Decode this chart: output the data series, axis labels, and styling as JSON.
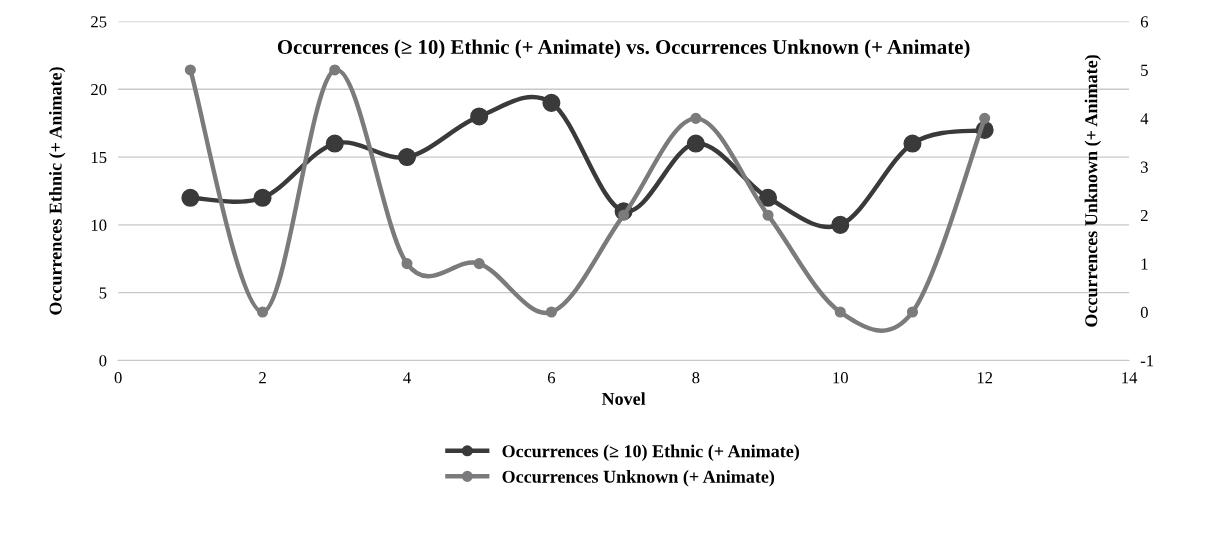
{
  "chart_data": {
    "type": "line",
    "title": "Occurrences (≥ 10) Ethnic (+ Animate) vs. Occurrences Unknown (+ Animate)",
    "xlabel": "Novel",
    "ylabel": "Occurrences Ethnic (+ Animate)",
    "y2label": "Occurrences Unknown (+ Animate)",
    "x": [
      1,
      2,
      3,
      4,
      5,
      6,
      7,
      8,
      9,
      10,
      11,
      12
    ],
    "series": [
      {
        "name": "Occurrences (≥ 10) Ethnic (+ Animate)",
        "color": "#3a3a3a",
        "values": [
          12,
          12,
          16,
          15,
          18,
          19,
          11,
          16,
          12,
          10,
          16,
          17
        ]
      },
      {
        "name": "Occurrences Unknown (+ Animate)",
        "color": "#7b7b7d",
        "axis": "y2",
        "values": [
          5,
          0,
          5,
          1,
          1,
          0,
          2,
          4,
          2,
          0,
          0,
          4
        ]
      }
    ],
    "xlim": [
      0,
      14
    ],
    "xticks": [
      0,
      2,
      4,
      6,
      8,
      10,
      12,
      14
    ],
    "ylim": [
      0,
      25
    ],
    "yticks": [
      0,
      5,
      10,
      15,
      20,
      25
    ],
    "y2lim": [
      -1,
      6
    ],
    "y2ticks": [
      -1,
      0,
      1,
      2,
      3,
      4,
      5,
      6
    ],
    "grid": "y",
    "legend": "bottom",
    "marker": "circle",
    "line_style": "solid"
  }
}
